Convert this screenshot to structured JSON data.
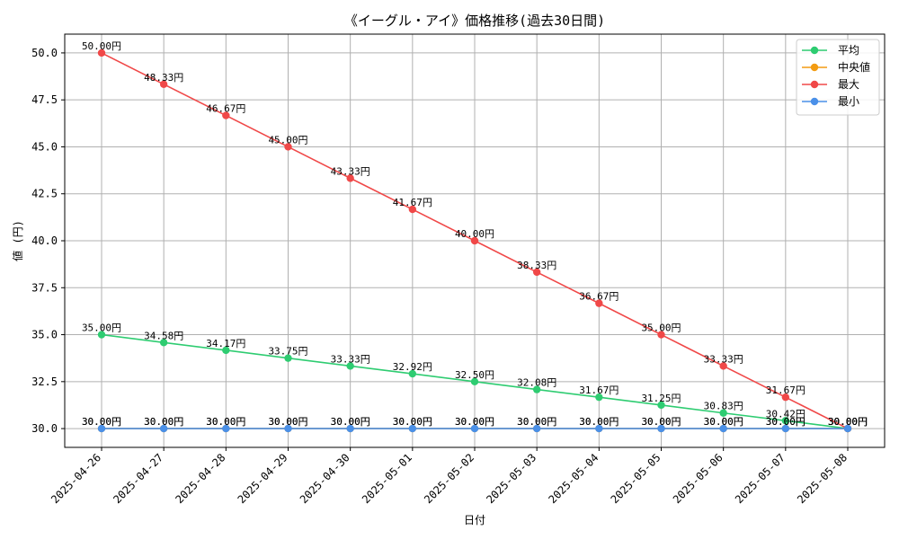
{
  "chart_data": {
    "type": "line",
    "title": "《イーグル・アイ》価格推移(過去30日間)",
    "xlabel": "日付",
    "ylabel": "値 (円)",
    "ylim": [
      29.0,
      51.0
    ],
    "yticks": [
      30.0,
      32.5,
      35.0,
      37.5,
      40.0,
      42.5,
      45.0,
      47.5,
      50.0
    ],
    "ytick_labels": [
      "30.0",
      "32.5",
      "35.0",
      "37.5",
      "40.0",
      "42.5",
      "45.0",
      "47.5",
      "50.0"
    ],
    "grid": true,
    "legend_position": "top-right",
    "label_suffix": "円",
    "categories": [
      "2025-04-26",
      "2025-04-27",
      "2025-04-28",
      "2025-04-29",
      "2025-04-30",
      "2025-05-01",
      "2025-05-02",
      "2025-05-03",
      "2025-05-04",
      "2025-05-05",
      "2025-05-06",
      "2025-05-07",
      "2025-05-08"
    ],
    "series": [
      {
        "name": "平均",
        "color": "#2ecc71",
        "values": [
          35.0,
          34.58,
          34.17,
          33.75,
          33.33,
          32.92,
          32.5,
          32.08,
          31.67,
          31.25,
          30.83,
          30.42,
          30.0
        ]
      },
      {
        "name": "中央値",
        "color": "#f39c12",
        "values": [
          30.0,
          30.0,
          30.0,
          30.0,
          30.0,
          30.0,
          30.0,
          30.0,
          30.0,
          30.0,
          30.0,
          30.0,
          30.0
        ]
      },
      {
        "name": "最大",
        "color": "#f04848",
        "values": [
          50.0,
          48.33,
          46.67,
          45.0,
          43.33,
          41.67,
          40.0,
          38.33,
          36.67,
          35.0,
          33.33,
          31.67,
          30.0
        ]
      },
      {
        "name": "最小",
        "color": "#4a90e8",
        "values": [
          30.0,
          30.0,
          30.0,
          30.0,
          30.0,
          30.0,
          30.0,
          30.0,
          30.0,
          30.0,
          30.0,
          30.0,
          30.0
        ]
      }
    ]
  }
}
